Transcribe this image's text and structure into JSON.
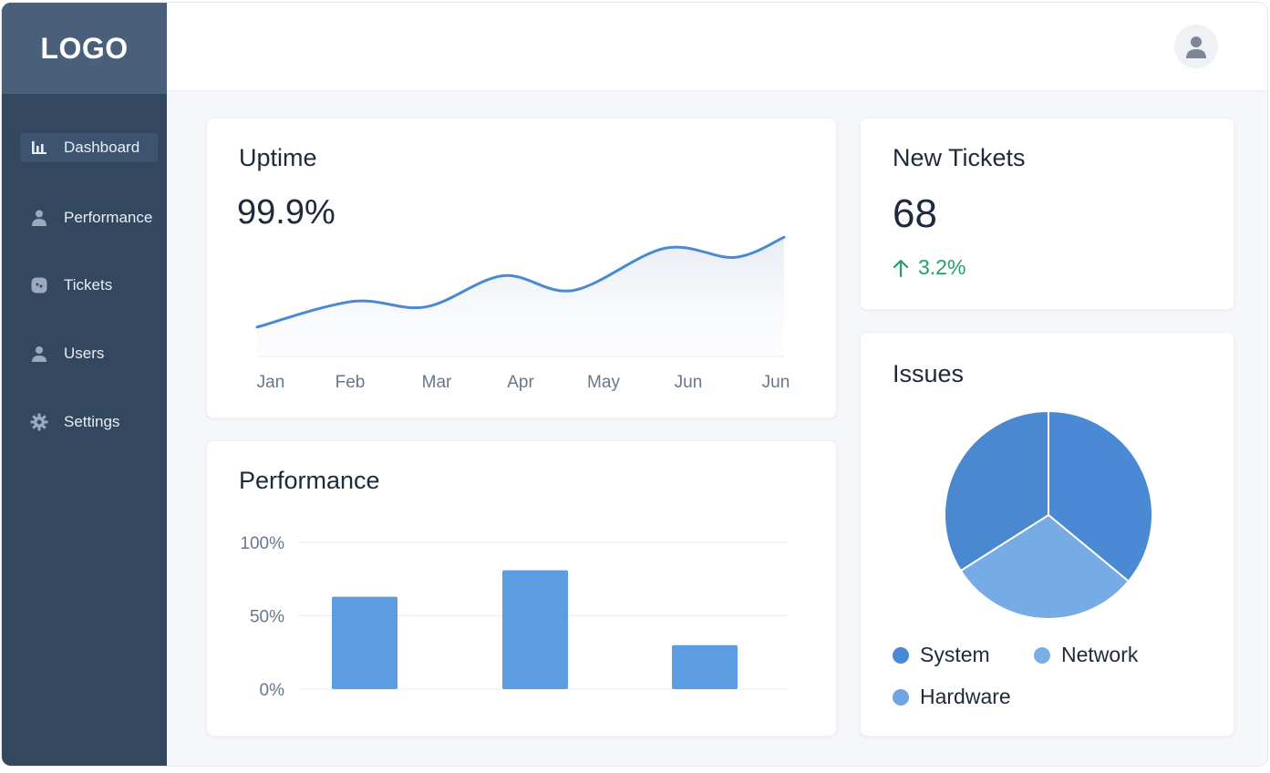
{
  "sidebar": {
    "logo": "LOGO",
    "items": [
      {
        "label": "Dashboard",
        "icon": "bar-chart-icon",
        "active": true
      },
      {
        "label": "Performance",
        "icon": "user-icon"
      },
      {
        "label": "Tickets",
        "icon": "ticket-icon"
      },
      {
        "label": "Users",
        "icon": "users-icon"
      },
      {
        "label": "Settings",
        "icon": "gear-icon"
      }
    ]
  },
  "header": {
    "avatar_icon": "user-avatar-icon"
  },
  "uptime": {
    "title": "Uptime",
    "value": "99.9%"
  },
  "tickets": {
    "title": "New Tickets",
    "value": "68",
    "change": "3.2%",
    "change_color": "#21a06b"
  },
  "performance": {
    "title": "Performance"
  },
  "issues": {
    "title": "Issues"
  },
  "colors": {
    "accent": "#4a8ad4",
    "bar": "#5b9de0",
    "sidebar": "#33475f"
  },
  "chart_data": [
    {
      "type": "area",
      "categories": [
        "Jan",
        "Feb",
        "Mar",
        "Apr",
        "May",
        "Jun",
        "Jun"
      ],
      "series": [
        {
          "values": [
            32,
            60,
            54,
            88,
            72,
            118,
            108,
            130
          ]
        }
      ],
      "x": [
        0,
        0.68,
        1.2,
        1.75,
        2.25,
        2.9,
        3.4,
        3.75
      ],
      "ylim": [
        0,
        180
      ],
      "grid": false
    },
    {
      "type": "bar",
      "categories": [
        "",
        "",
        ""
      ],
      "values": [
        63,
        81,
        30
      ],
      "yticks": [
        "0%",
        "50%",
        "100%"
      ],
      "ylim": [
        0,
        100
      ],
      "grid": true
    },
    {
      "type": "pie",
      "labels": [
        "System",
        "Network",
        "Hardware"
      ],
      "values": [
        36,
        30,
        34
      ],
      "colors": [
        "#4a8ad4",
        "#7aafe6",
        "#4a8ad4"
      ],
      "legend": "bottom"
    }
  ]
}
